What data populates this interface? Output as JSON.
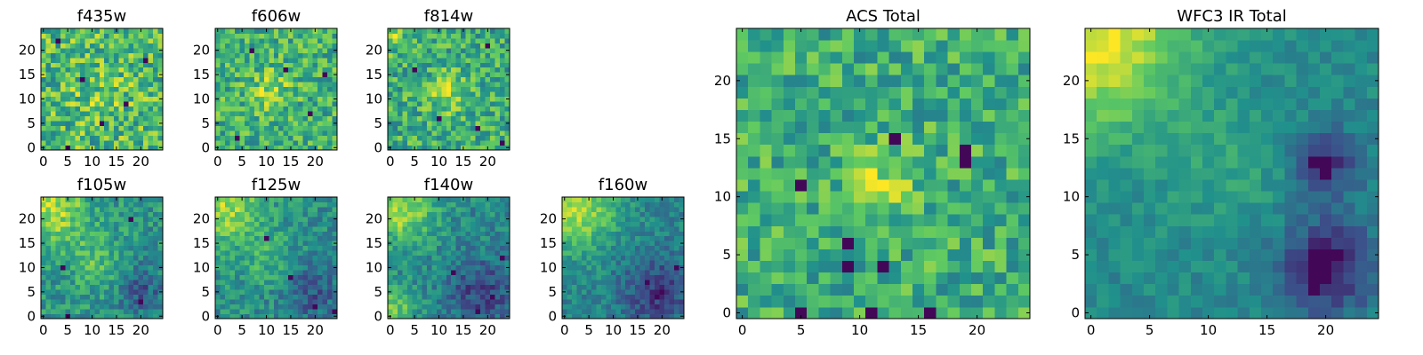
{
  "figure": {
    "colormap": "viridis",
    "colormap_stops": [
      "#440154",
      "#3b528b",
      "#21918c",
      "#5ec962",
      "#fde725"
    ],
    "background": "#ffffff"
  },
  "chart_data": [
    {
      "id": "f435w",
      "type": "heatmap",
      "title": "f435w",
      "grid_size": 25,
      "xlim": [
        -0.5,
        24.5
      ],
      "ylim": [
        -0.5,
        24.5
      ],
      "xticks": [
        0,
        5,
        10,
        15,
        20
      ],
      "yticks": [
        0,
        5,
        10,
        15,
        20
      ],
      "field": {
        "base": 0.68,
        "noise": 0.26,
        "blobs": [
          {
            "x": 12,
            "y": 11,
            "amp": 0.08,
            "r": 4
          }
        ],
        "dark_pixels": [
          [
            5,
            0
          ],
          [
            8,
            14
          ],
          [
            3,
            22
          ],
          [
            17,
            9
          ],
          [
            21,
            18
          ],
          [
            12,
            5
          ]
        ]
      }
    },
    {
      "id": "f606w",
      "type": "heatmap",
      "title": "f606w",
      "grid_size": 25,
      "xlim": [
        -0.5,
        24.5
      ],
      "ylim": [
        -0.5,
        24.5
      ],
      "xticks": [
        0,
        5,
        10,
        15,
        20
      ],
      "yticks": [
        0,
        5,
        10,
        15,
        20
      ],
      "field": {
        "base": 0.64,
        "noise": 0.22,
        "blobs": [
          {
            "x": 11,
            "y": 12,
            "amp": 0.18,
            "r": 3
          }
        ],
        "dark_pixels": [
          [
            14,
            16
          ],
          [
            7,
            20
          ],
          [
            4,
            2
          ],
          [
            19,
            7
          ],
          [
            22,
            15
          ]
        ]
      }
    },
    {
      "id": "f814w",
      "type": "heatmap",
      "title": "f814w",
      "grid_size": 25,
      "xlim": [
        -0.5,
        24.5
      ],
      "ylim": [
        -0.5,
        24.5
      ],
      "xticks": [
        0,
        5,
        10,
        15,
        20
      ],
      "yticks": [
        0,
        5,
        10,
        15,
        20
      ],
      "field": {
        "base": 0.62,
        "noise": 0.22,
        "blobs": [
          {
            "x": 12,
            "y": 11,
            "amp": 0.22,
            "r": 3
          },
          {
            "x": 0,
            "y": 24,
            "amp": 0.2,
            "r": 3
          }
        ],
        "dark_pixels": [
          [
            18,
            4
          ],
          [
            5,
            16
          ],
          [
            23,
            1
          ],
          [
            10,
            6
          ],
          [
            20,
            21
          ]
        ]
      }
    },
    {
      "id": "f105w",
      "type": "heatmap",
      "title": "f105w",
      "grid_size": 25,
      "xlim": [
        -0.5,
        24.5
      ],
      "ylim": [
        -0.5,
        24.5
      ],
      "xticks": [
        0,
        5,
        10,
        15,
        20
      ],
      "yticks": [
        0,
        5,
        10,
        15,
        20
      ],
      "field": {
        "base": 0.52,
        "noise": 0.16,
        "blobs": [
          {
            "x": 2,
            "y": 22,
            "amp": 0.35,
            "r": 5
          },
          {
            "x": 11,
            "y": 11,
            "amp": 0.18,
            "r": 4
          },
          {
            "x": 20,
            "y": 5,
            "amp": -0.22,
            "r": 4
          }
        ],
        "dark_pixels": [
          [
            5,
            0
          ],
          [
            4,
            10
          ],
          [
            20,
            3
          ],
          [
            18,
            20
          ]
        ]
      }
    },
    {
      "id": "f125w",
      "type": "heatmap",
      "title": "f125w",
      "grid_size": 25,
      "xlim": [
        -0.5,
        24.5
      ],
      "ylim": [
        -0.5,
        24.5
      ],
      "xticks": [
        0,
        5,
        10,
        15,
        20
      ],
      "yticks": [
        0,
        5,
        10,
        15,
        20
      ],
      "field": {
        "base": 0.5,
        "noise": 0.15,
        "blobs": [
          {
            "x": 2,
            "y": 22,
            "amp": 0.35,
            "r": 5
          },
          {
            "x": 10,
            "y": 12,
            "amp": 0.14,
            "r": 4
          },
          {
            "x": 19,
            "y": 5,
            "amp": -0.24,
            "r": 4
          }
        ],
        "dark_pixels": [
          [
            10,
            16
          ],
          [
            20,
            2
          ],
          [
            24,
            1
          ],
          [
            15,
            8
          ]
        ]
      }
    },
    {
      "id": "f140w",
      "type": "heatmap",
      "title": "f140w",
      "grid_size": 25,
      "xlim": [
        -0.5,
        24.5
      ],
      "ylim": [
        -0.5,
        24.5
      ],
      "xticks": [
        0,
        5,
        10,
        15,
        20
      ],
      "yticks": [
        0,
        5,
        10,
        15,
        20
      ],
      "field": {
        "base": 0.47,
        "noise": 0.14,
        "blobs": [
          {
            "x": 2,
            "y": 22,
            "amp": 0.4,
            "r": 5
          },
          {
            "x": 1,
            "y": 2,
            "amp": 0.28,
            "r": 3
          },
          {
            "x": 19,
            "y": 5,
            "amp": -0.26,
            "r": 5
          }
        ],
        "dark_pixels": [
          [
            13,
            9
          ],
          [
            21,
            4
          ],
          [
            18,
            1
          ],
          [
            23,
            12
          ]
        ]
      }
    },
    {
      "id": "f160w",
      "type": "heatmap",
      "title": "f160w",
      "grid_size": 25,
      "xlim": [
        -0.5,
        24.5
      ],
      "ylim": [
        -0.5,
        24.5
      ],
      "xticks": [
        0,
        5,
        10,
        15,
        20
      ],
      "yticks": [
        0,
        5,
        10,
        15,
        20
      ],
      "field": {
        "base": 0.45,
        "noise": 0.12,
        "blobs": [
          {
            "x": 2,
            "y": 22,
            "amp": 0.42,
            "r": 6
          },
          {
            "x": 19,
            "y": 5,
            "amp": -0.28,
            "r": 5
          }
        ],
        "dark_pixels": [
          [
            19,
            4
          ],
          [
            20,
            5
          ],
          [
            17,
            7
          ],
          [
            23,
            10
          ]
        ]
      }
    },
    {
      "id": "acs-total",
      "type": "heatmap",
      "title": "ACS Total",
      "grid_size": 25,
      "xlim": [
        -0.5,
        24.5
      ],
      "ylim": [
        -0.5,
        24.5
      ],
      "xticks": [
        0,
        5,
        10,
        15,
        20
      ],
      "yticks": [
        0,
        5,
        10,
        15,
        20
      ],
      "field": {
        "base": 0.63,
        "noise": 0.2,
        "blobs": [
          {
            "x": 12,
            "y": 11,
            "amp": 0.25,
            "r": 2
          }
        ],
        "dark_pixels": [
          [
            13,
            15
          ],
          [
            19,
            14
          ],
          [
            19,
            13
          ],
          [
            5,
            11
          ],
          [
            9,
            6
          ],
          [
            9,
            4
          ],
          [
            12,
            4
          ],
          [
            5,
            0
          ],
          [
            11,
            0
          ],
          [
            16,
            0
          ]
        ]
      }
    },
    {
      "id": "wfc3-ir-total",
      "type": "heatmap",
      "title": "WFC3 IR Total",
      "grid_size": 25,
      "xlim": [
        -0.5,
        24.5
      ],
      "ylim": [
        -0.5,
        24.5
      ],
      "xticks": [
        0,
        5,
        10,
        15,
        20
      ],
      "yticks": [
        0,
        5,
        10,
        15,
        20
      ],
      "field": {
        "base": 0.47,
        "noise": 0.08,
        "blobs": [
          {
            "x": 0,
            "y": 24,
            "amp": 0.5,
            "r": 6
          },
          {
            "x": 12,
            "y": 12,
            "amp": 0.1,
            "r": 4
          },
          {
            "x": 20,
            "y": 4,
            "amp": -0.38,
            "r": 3
          },
          {
            "x": 20,
            "y": 13,
            "amp": -0.32,
            "r": 2
          }
        ],
        "dark_pixels": [
          [
            19,
            5
          ],
          [
            20,
            5
          ],
          [
            19,
            4
          ],
          [
            20,
            4
          ],
          [
            19,
            3
          ],
          [
            20,
            3
          ],
          [
            19,
            2
          ],
          [
            21,
            5
          ],
          [
            19,
            13
          ],
          [
            20,
            13
          ],
          [
            20,
            12
          ]
        ]
      }
    }
  ]
}
